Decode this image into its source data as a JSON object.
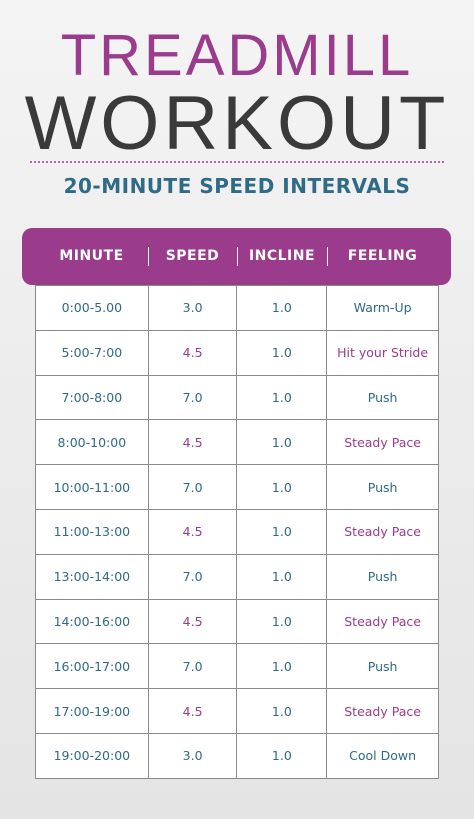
{
  "header": {
    "title_line1": "TREADMILL",
    "title_line2": "WORKOUT",
    "subtitle": "20-MINUTE SPEED INTERVALS"
  },
  "table": {
    "columns": [
      "MINUTE",
      "SPEED",
      "INCLINE",
      "FEELING"
    ],
    "rows": [
      [
        "0:00-5.00",
        "3.0",
        "1.0",
        "Warm-Up"
      ],
      [
        "5:00-7:00",
        "4.5",
        "1.0",
        "Hit your Stride"
      ],
      [
        "7:00-8:00",
        "7.0",
        "1.0",
        "Push"
      ],
      [
        "8:00-10:00",
        "4.5",
        "1.0",
        "Steady Pace"
      ],
      [
        "10:00-11:00",
        "7.0",
        "1.0",
        "Push"
      ],
      [
        "11:00-13:00",
        "4.5",
        "1.0",
        "Steady Pace"
      ],
      [
        "13:00-14:00",
        "7.0",
        "1.0",
        "Push"
      ],
      [
        "14:00-16:00",
        "4.5",
        "1.0",
        "Steady Pace"
      ],
      [
        "16:00-17:00",
        "7.0",
        "1.0",
        "Push"
      ],
      [
        "17:00-19:00",
        "4.5",
        "1.0",
        "Steady Pace"
      ],
      [
        "19:00-20:00",
        "3.0",
        "1.0",
        "Cool Down"
      ]
    ]
  }
}
